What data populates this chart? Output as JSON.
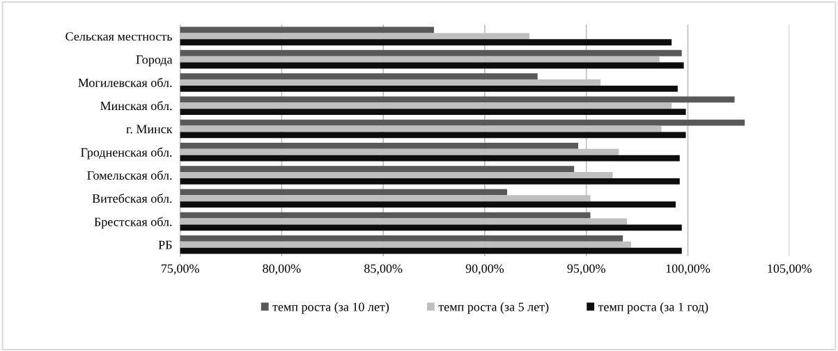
{
  "chart_data": {
    "type": "bar",
    "orientation": "horizontal",
    "categories": [
      "Сельская местность",
      "Города",
      "Могилевская обл.",
      "Минская обл.",
      "г. Минск",
      "Гродненская обл.",
      "Гомельская обл.",
      "Витебская обл.",
      "Брестская обл.",
      "РБ"
    ],
    "series": [
      {
        "name": "темп роста (за 10 лет)",
        "color": "#595959",
        "values": [
          87.5,
          99.7,
          92.6,
          102.3,
          102.8,
          94.6,
          94.4,
          91.1,
          95.2,
          96.8
        ]
      },
      {
        "name": "темп роста (за 5 лет)",
        "color": "#bfbfbf",
        "values": [
          92.2,
          98.6,
          95.7,
          99.2,
          98.7,
          96.6,
          96.3,
          95.2,
          97.0,
          97.2
        ]
      },
      {
        "name": "темп роста (за 1 год)",
        "color": "#0d0d0d",
        "values": [
          99.2,
          99.8,
          99.5,
          99.9,
          99.9,
          99.6,
          99.6,
          99.4,
          99.7,
          99.7
        ]
      }
    ],
    "xlim": [
      75,
      105
    ],
    "xticks": [
      {
        "value": 75,
        "label": "75,00%"
      },
      {
        "value": 80,
        "label": "80,00%"
      },
      {
        "value": 85,
        "label": "85,00%"
      },
      {
        "value": 90,
        "label": "90,00%"
      },
      {
        "value": 95,
        "label": "95,00%"
      },
      {
        "value": 100,
        "label": "100,00%"
      },
      {
        "value": 105,
        "label": "105,00%"
      }
    ],
    "grid": "x",
    "legend": "bottom"
  }
}
